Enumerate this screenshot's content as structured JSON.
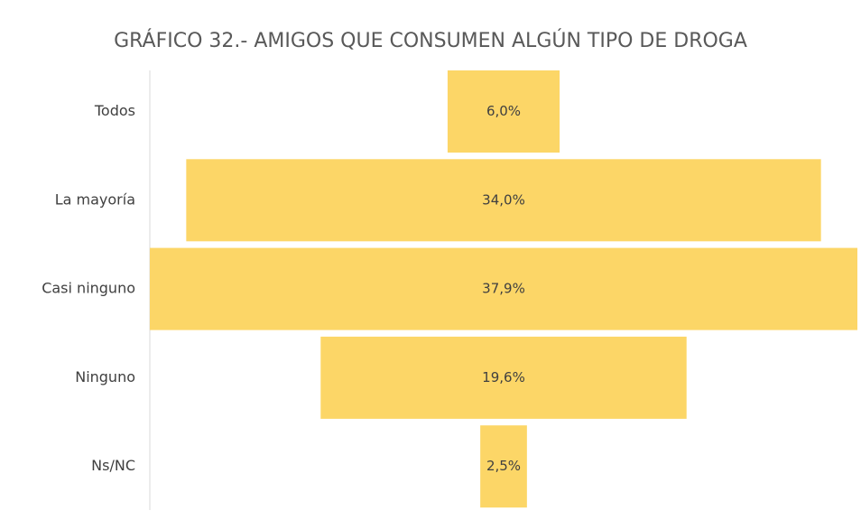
{
  "chart_data": {
    "type": "funnel",
    "title": "GRÁFICO 32.- AMIGOS QUE CONSUMEN ALGÚN TIPO DE DROGA",
    "categories": [
      "Todos",
      "La mayoría",
      "Casi ninguno",
      "Ninguno",
      "Ns/NC"
    ],
    "values": [
      6.0,
      34.0,
      37.9,
      19.6,
      2.5
    ],
    "value_labels": [
      "6,0%",
      "34,0%",
      "37,9%",
      "19,6%",
      "2,5%"
    ],
    "color": "#fcd667"
  }
}
